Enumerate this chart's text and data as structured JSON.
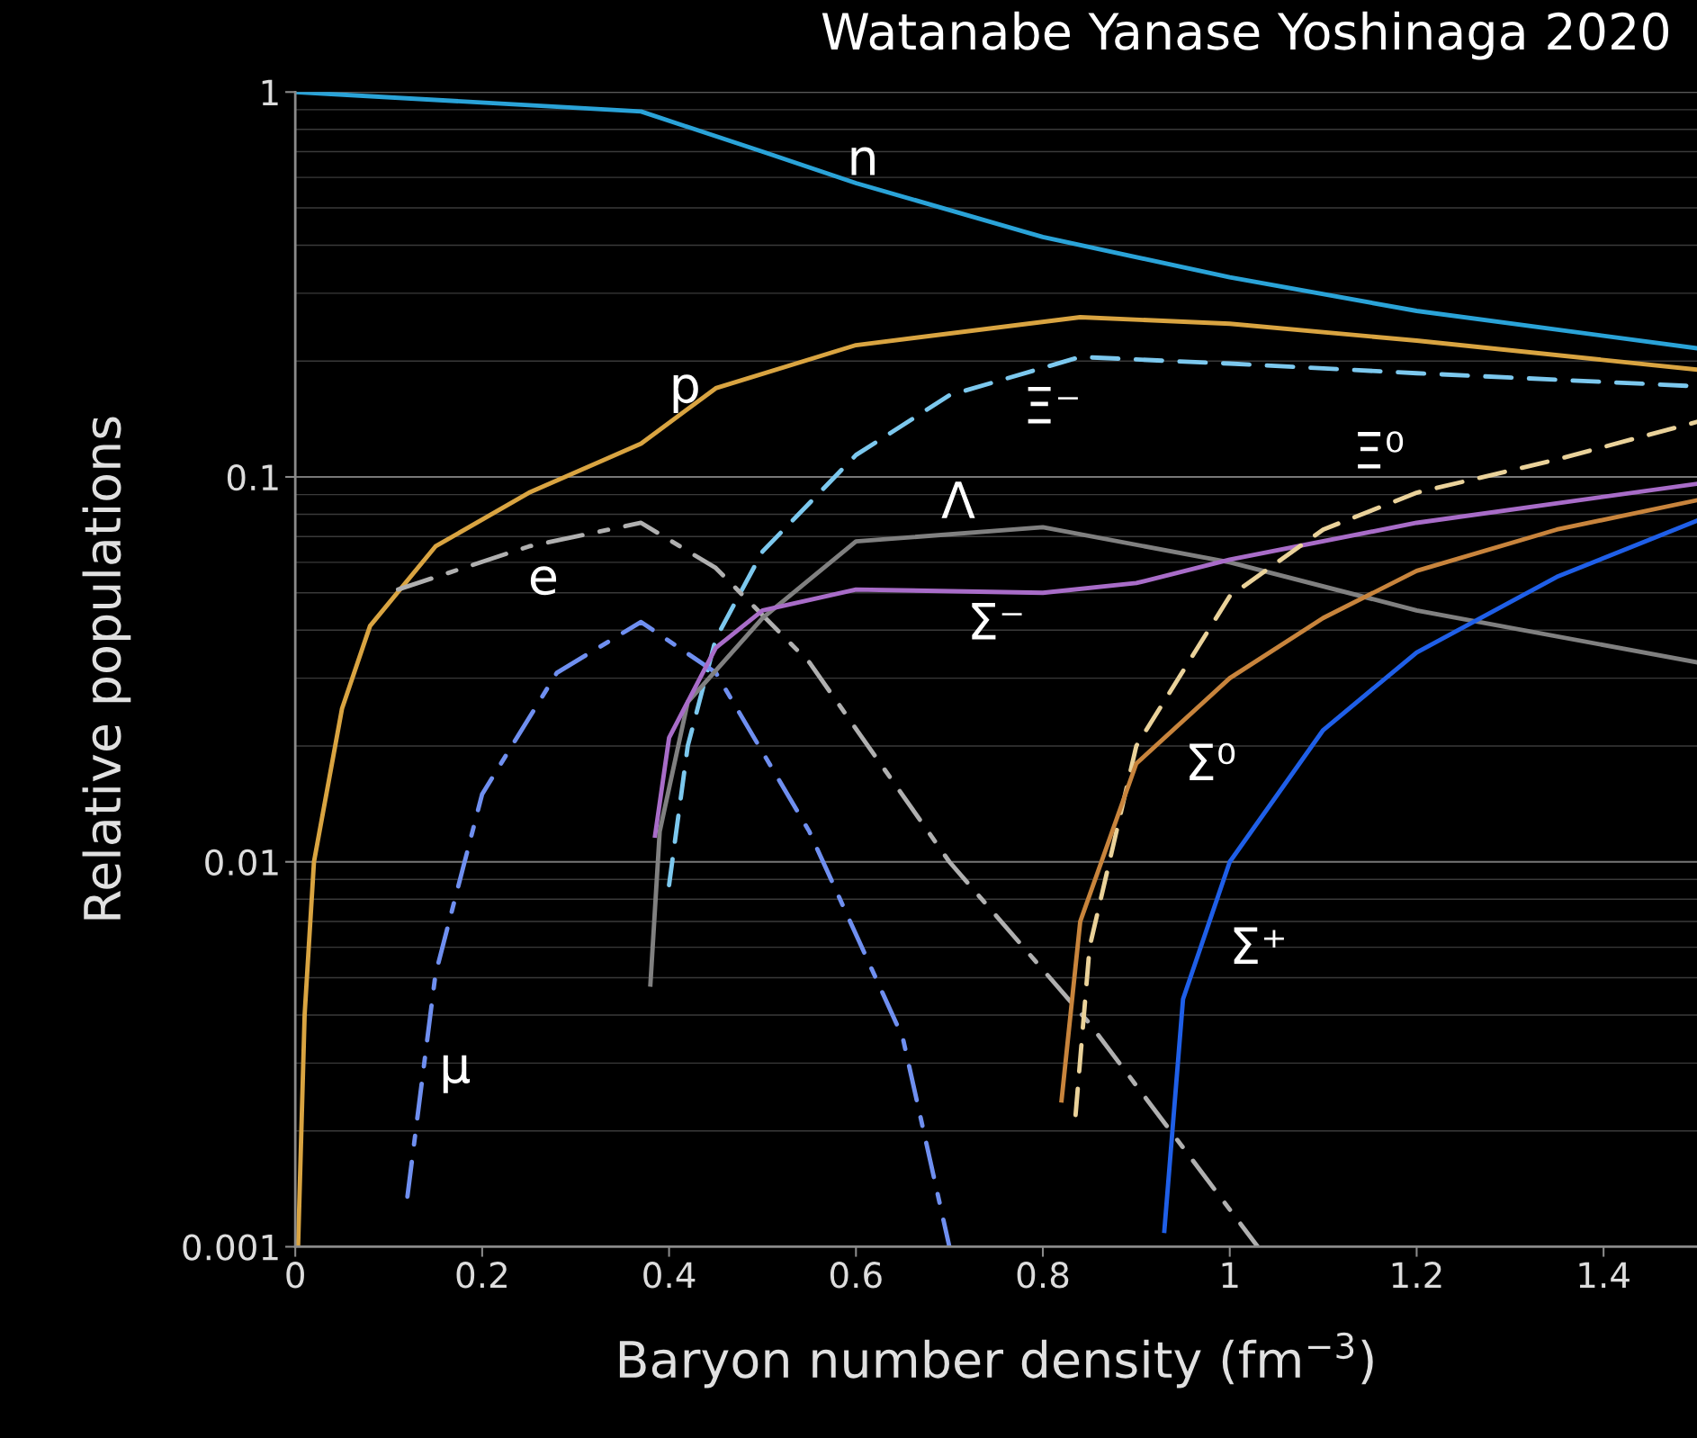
{
  "chart_data": {
    "type": "line",
    "title": "Watanabe Yanase Yoshinaga 2020",
    "xlabel": "Baryon number density (fm$^{−3}$)",
    "ylabel": "Relative populations",
    "xlim": [
      0,
      1.5
    ],
    "xticks": [
      0,
      0.2,
      0.4,
      0.6,
      0.8,
      1,
      1.2,
      1.4
    ],
    "ylim": [
      0.001,
      1
    ],
    "yticks": [
      0.001,
      0.01,
      0.1,
      1
    ],
    "log": "y",
    "grid": "y",
    "legend": false,
    "series": [
      {
        "name": "n",
        "color": "#2aa3d8",
        "line_style": "solid",
        "x": [
          0,
          0.37,
          0.5,
          0.6,
          0.8,
          1.0,
          1.2,
          1.5
        ],
        "values": [
          1,
          0.89,
          0.7,
          0.58,
          0.42,
          0.33,
          0.27,
          0.216
        ]
      },
      {
        "name": "p",
        "color": "#d9a441",
        "line_style": "solid",
        "x": [
          0.003,
          0.01,
          0.02,
          0.05,
          0.08,
          0.15,
          0.25,
          0.37,
          0.45,
          0.6,
          0.84,
          1.0,
          1.2,
          1.5
        ],
        "values": [
          0.001,
          0.004,
          0.01,
          0.025,
          0.041,
          0.066,
          0.091,
          0.122,
          0.17,
          0.22,
          0.26,
          0.25,
          0.226,
          0.19
        ]
      },
      {
        "name": "Ξ⁻",
        "color": "#7cc8ee",
        "line_style": "dashed",
        "x": [
          0.4,
          0.42,
          0.45,
          0.5,
          0.6,
          0.7,
          0.84,
          1.0,
          1.2,
          1.5
        ],
        "values": [
          0.0087,
          0.02,
          0.038,
          0.064,
          0.114,
          0.163,
          0.205,
          0.197,
          0.186,
          0.172
        ]
      },
      {
        "name": "e",
        "color": "#b0b0b0",
        "line_style": "dashdot",
        "x": [
          0.11,
          0.25,
          0.37,
          0.45,
          0.55,
          0.7,
          0.85,
          1.03
        ],
        "values": [
          0.051,
          0.066,
          0.076,
          0.058,
          0.033,
          0.01,
          0.0038,
          0.001
        ]
      },
      {
        "name": "μ",
        "color": "#6f8ff0",
        "line_style": "dashdot",
        "x": [
          0.12,
          0.15,
          0.2,
          0.28,
          0.37,
          0.45,
          0.55,
          0.65,
          0.7
        ],
        "values": [
          0.00135,
          0.0051,
          0.015,
          0.031,
          0.042,
          0.031,
          0.012,
          0.0035,
          0.001
        ]
      },
      {
        "name": "Λ",
        "color": "#808080",
        "line_style": "solid",
        "x": [
          0.38,
          0.39,
          0.42,
          0.5,
          0.6,
          0.8,
          1.0,
          1.2,
          1.5
        ],
        "values": [
          0.0048,
          0.012,
          0.026,
          0.043,
          0.068,
          0.074,
          0.06,
          0.045,
          0.033
        ]
      },
      {
        "name": "Σ⁻",
        "color": "#a86cc8",
        "line_style": "solid",
        "x": [
          0.385,
          0.4,
          0.45,
          0.5,
          0.6,
          0.8,
          0.9,
          1.0,
          1.2,
          1.5
        ],
        "values": [
          0.0117,
          0.021,
          0.036,
          0.045,
          0.051,
          0.05,
          0.053,
          0.061,
          0.076,
          0.096
        ]
      },
      {
        "name": "Ξ⁰",
        "color": "#ead29a",
        "line_style": "dashed",
        "x": [
          0.835,
          0.85,
          0.9,
          1.0,
          1.1,
          1.2,
          1.35,
          1.5
        ],
        "values": [
          0.0022,
          0.006,
          0.02,
          0.049,
          0.073,
          0.091,
          0.111,
          0.139
        ]
      },
      {
        "name": "Σ⁰",
        "color": "#c8843c",
        "line_style": "solid",
        "x": [
          0.82,
          0.84,
          0.9,
          1.0,
          1.1,
          1.2,
          1.35,
          1.5
        ],
        "values": [
          0.0024,
          0.007,
          0.018,
          0.03,
          0.043,
          0.057,
          0.073,
          0.087
        ]
      },
      {
        "name": "Σ⁺",
        "color": "#1f5fe8",
        "line_style": "solid",
        "x": [
          0.93,
          0.95,
          1.0,
          1.1,
          1.2,
          1.35,
          1.5
        ],
        "values": [
          0.0011,
          0.0044,
          0.01,
          0.022,
          0.035,
          0.055,
          0.077
        ]
      }
    ]
  }
}
